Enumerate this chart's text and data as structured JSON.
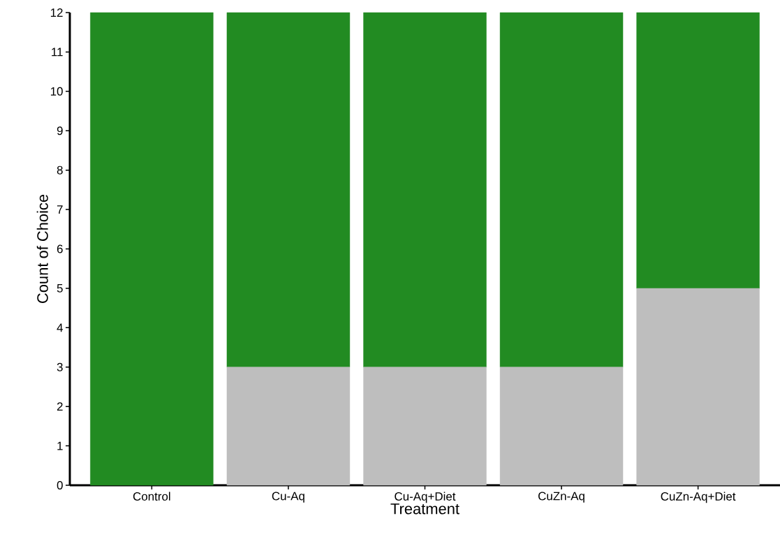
{
  "chart_data": {
    "type": "bar",
    "stacked": true,
    "xlabel": "Treatment",
    "ylabel": "Count of Choice",
    "categories": [
      "Control",
      "Cu-Aq",
      "Cu-Aq+Diet",
      "CuZn-Aq",
      "CuZn-Aq+Diet"
    ],
    "series": [
      {
        "color": "#bebebe",
        "values": [
          0,
          3,
          3,
          3,
          5
        ]
      },
      {
        "color": "#228b22",
        "values": [
          12,
          9,
          9,
          9,
          7
        ]
      }
    ],
    "ylim": [
      0,
      12
    ],
    "yticks": [
      0,
      1,
      2,
      3,
      4,
      5,
      6,
      7,
      8,
      9,
      10,
      11,
      12
    ]
  }
}
